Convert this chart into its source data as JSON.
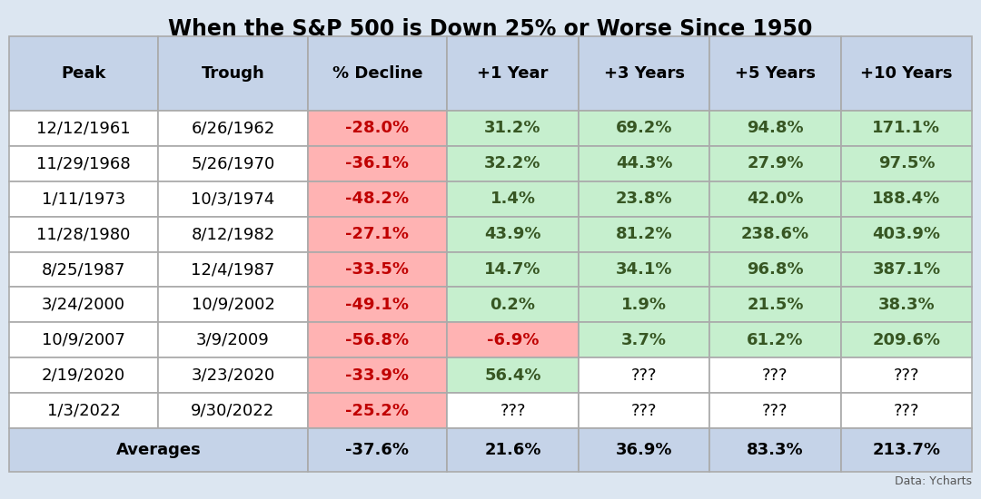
{
  "title": "When the S&P 500 is Down 25% or Worse Since 1950",
  "columns": [
    "Peak",
    "Trough",
    "% Decline",
    "+1 Year",
    "+3 Years",
    "+5 Years",
    "+10 Years"
  ],
  "rows": [
    [
      "12/12/1961",
      "6/26/1962",
      "-28.0%",
      "31.2%",
      "69.2%",
      "94.8%",
      "171.1%"
    ],
    [
      "11/29/1968",
      "5/26/1970",
      "-36.1%",
      "32.2%",
      "44.3%",
      "27.9%",
      "97.5%"
    ],
    [
      "1/11/1973",
      "10/3/1974",
      "-48.2%",
      "1.4%",
      "23.8%",
      "42.0%",
      "188.4%"
    ],
    [
      "11/28/1980",
      "8/12/1982",
      "-27.1%",
      "43.9%",
      "81.2%",
      "238.6%",
      "403.9%"
    ],
    [
      "8/25/1987",
      "12/4/1987",
      "-33.5%",
      "14.7%",
      "34.1%",
      "96.8%",
      "387.1%"
    ],
    [
      "3/24/2000",
      "10/9/2002",
      "-49.1%",
      "0.2%",
      "1.9%",
      "21.5%",
      "38.3%"
    ],
    [
      "10/9/2007",
      "3/9/2009",
      "-56.8%",
      "-6.9%",
      "3.7%",
      "61.2%",
      "209.6%"
    ],
    [
      "2/19/2020",
      "3/23/2020",
      "-33.9%",
      "56.4%",
      "???",
      "???",
      "???"
    ],
    [
      "1/3/2022",
      "9/30/2022",
      "-25.2%",
      "???",
      "???",
      "???",
      "???"
    ]
  ],
  "averages_label": "Averages",
  "averages": [
    "-37.6%",
    "21.6%",
    "36.9%",
    "83.3%",
    "213.7%"
  ],
  "bg_color": "#dce6f1",
  "header_bg": "#c5d3e8",
  "data_row_bg": "#ffffff",
  "avg_bg": "#c5d3e8",
  "decline_bg": "#ffb3b3",
  "positive_bg": "#c6efce",
  "negative_bg": "#ffb3b3",
  "unknown_bg": "#ffffff",
  "decline_tc": "#c00000",
  "positive_tc": "#375623",
  "negative_tc": "#c00000",
  "neutral_tc": "#000000",
  "unknown_tc": "#000000",
  "border_color": "#aaaaaa",
  "title_fontsize": 17,
  "header_fontsize": 13,
  "cell_fontsize": 13,
  "avg_fontsize": 13,
  "data_source": "Data: Ycharts"
}
